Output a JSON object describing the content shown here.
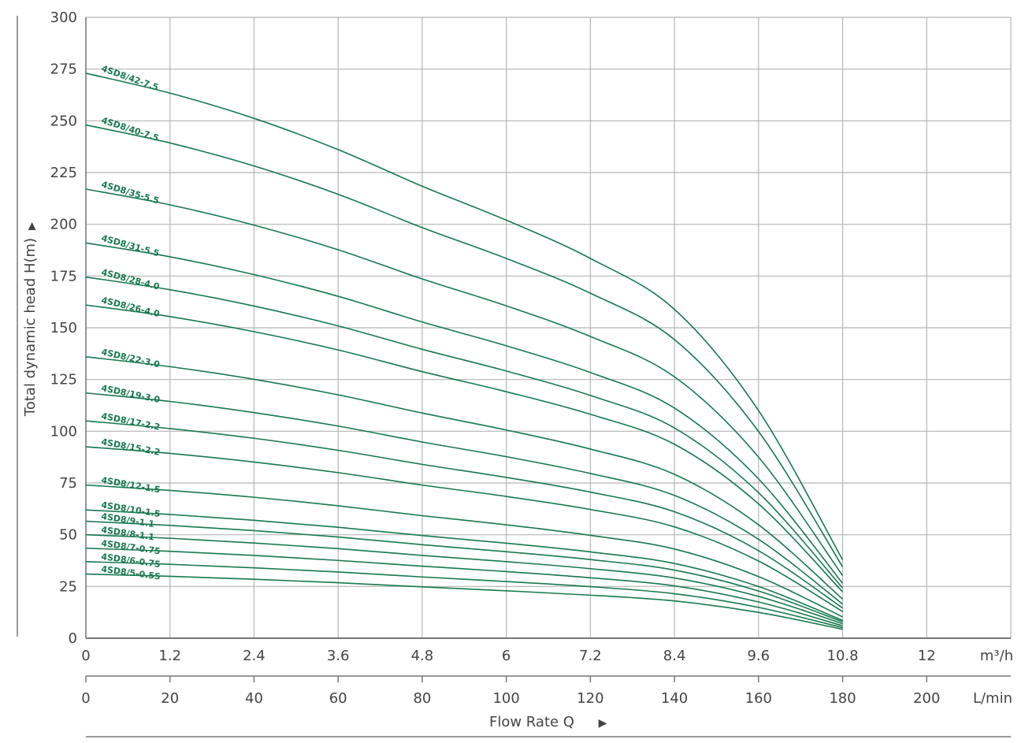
{
  "chart_data": {
    "type": "line",
    "title": "",
    "xlabel": "Flow Rate Q",
    "ylabel": "Total dynamic head H(m)",
    "x_unit_primary": "m³/h",
    "x_unit_secondary": "L/min",
    "xlim": [
      0,
      13.2
    ],
    "ylim": [
      0,
      300
    ],
    "x_ticks": [
      0,
      1.2,
      2.4,
      3.6,
      4.8,
      6,
      7.2,
      8.4,
      9.6,
      10.8,
      12
    ],
    "x_tick_labels": [
      "0",
      "1.2",
      "2.4",
      "3.6",
      "4.8",
      "6",
      "7.2",
      "8.4",
      "9.6",
      "10.8",
      "12"
    ],
    "x2_tick_labels": [
      "0",
      "20",
      "40",
      "60",
      "80",
      "100",
      "120",
      "140",
      "160",
      "180",
      "200"
    ],
    "y_ticks": [
      0,
      25,
      50,
      75,
      100,
      125,
      150,
      175,
      200,
      225,
      250,
      275,
      300
    ],
    "grid": true,
    "line_color": "#17794f",
    "x": [
      0,
      1.2,
      2.4,
      3.6,
      4.8,
      6,
      7.2,
      8.4,
      9.6,
      10.8
    ],
    "series": [
      {
        "name": "4SD8/42-7.5",
        "values": [
          273,
          263.4,
          251.2,
          236.1,
          218.4,
          202,
          183.5,
          158.9,
          110,
          37.9
        ]
      },
      {
        "name": "4SD8/40-7.5",
        "values": [
          248,
          239.3,
          228.2,
          214.5,
          198.4,
          183.5,
          166.7,
          144.3,
          99.9,
          34.5
        ]
      },
      {
        "name": "4SD8/35-5.5",
        "values": [
          217,
          209.4,
          199.6,
          187.7,
          173.6,
          160.6,
          145.8,
          126.3,
          87.5,
          30.2
        ]
      },
      {
        "name": "4SD8/31-5.5",
        "values": [
          191,
          184.3,
          175.7,
          165.2,
          152.8,
          141.3,
          128.4,
          111.2,
          77,
          26.5
        ]
      },
      {
        "name": "4SD8/28-4.0",
        "values": [
          174.5,
          168.4,
          160.5,
          150.9,
          139.6,
          129.1,
          117.3,
          101.6,
          70.3,
          24.3
        ]
      },
      {
        "name": "4SD8/26-4.0",
        "values": [
          161,
          155.4,
          148.1,
          139.3,
          128.8,
          119.1,
          108.2,
          93.7,
          64.9,
          22.4
        ]
      },
      {
        "name": "4SD8/22-3.0",
        "values": [
          136,
          131.2,
          125.1,
          117.6,
          108.8,
          100.6,
          91.4,
          79.2,
          54.8,
          18.9
        ]
      },
      {
        "name": "4SD8/19-3.0",
        "values": [
          118.5,
          114.4,
          109,
          102.5,
          94.8,
          87.7,
          79.6,
          69,
          47.8,
          16.5
        ]
      },
      {
        "name": "4SD8/17-2.2",
        "values": [
          105,
          101.3,
          96.6,
          90.8,
          84,
          77.7,
          70.6,
          61.1,
          42.3,
          14.6
        ]
      },
      {
        "name": "4SD8/15-2.2",
        "values": [
          92.5,
          89.3,
          85.1,
          80,
          74,
          68.5,
          62.2,
          53.8,
          37.3,
          12.9
        ]
      },
      {
        "name": "4SD8/12-1.5",
        "values": [
          74,
          71.4,
          68.1,
          64,
          59.2,
          54.8,
          49.7,
          43.1,
          29.8,
          10.3
        ]
      },
      {
        "name": "4SD8/10-1.5",
        "values": [
          62,
          59.8,
          57,
          53.6,
          49.6,
          45.9,
          41.7,
          36.1,
          25,
          8.6
        ]
      },
      {
        "name": "4SD8/9-1.1",
        "values": [
          56.5,
          54.5,
          52,
          48.9,
          45.2,
          41.8,
          38,
          32.9,
          22.8,
          7.9
        ]
      },
      {
        "name": "4SD8/8-1.1",
        "values": [
          50,
          48.3,
          46,
          43.3,
          40,
          37,
          33.6,
          29.1,
          20.2,
          7
        ]
      },
      {
        "name": "4SD8/7-0.75",
        "values": [
          43.5,
          42,
          40,
          37.6,
          34.8,
          32.2,
          29.2,
          25.3,
          17.5,
          6
        ]
      },
      {
        "name": "4SD8/6-0.75",
        "values": [
          37,
          35.7,
          34,
          32,
          29.6,
          27.4,
          24.9,
          21.5,
          14.9,
          5.1
        ]
      },
      {
        "name": "4SD8/5-0.55",
        "values": [
          31,
          29.9,
          28.5,
          26.8,
          24.8,
          22.9,
          20.8,
          18,
          12.5,
          4.3
        ]
      }
    ]
  }
}
